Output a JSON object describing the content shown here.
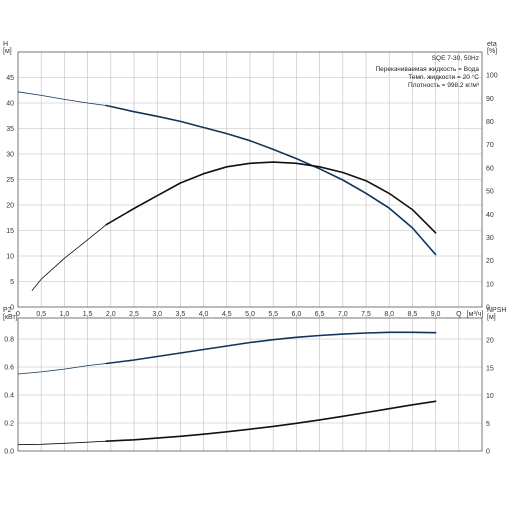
{
  "chart_data": [
    {
      "type": "line",
      "title": "SQE 7-30, 50Hz",
      "notes": [
        "Перекачиваемая жидкость = Вода",
        "Темп. жидкости = 20 °C",
        "Плотность = 998.2 кг/м³"
      ],
      "xlabel": "Q",
      "xunit": "[м³/ч]",
      "xlim": [
        0,
        10
      ],
      "xticks": [
        "0",
        "0,5",
        "1,0",
        "1,5",
        "2,0",
        "2,5",
        "3,0",
        "3,5",
        "4,0",
        "4,5",
        "5,0",
        "5,5",
        "6,0",
        "6,5",
        "7,0",
        "7,5",
        "8,0",
        "8,5",
        "9,0"
      ],
      "ylabel": "H",
      "yunit": "[м]",
      "ylim": [
        0,
        50
      ],
      "yticks": [
        "0",
        "5",
        "10",
        "15",
        "20",
        "25",
        "30",
        "35",
        "40",
        "45"
      ],
      "y2label": "eta",
      "y2unit": "[%]",
      "y2lim": [
        0,
        110
      ],
      "y2ticks": [
        "0",
        "10",
        "20",
        "30",
        "40",
        "50",
        "60",
        "70",
        "80",
        "90",
        "100"
      ],
      "grid": true,
      "series": [
        {
          "axis": "left",
          "color": "#10355a",
          "x": [
            0,
            0.5,
            1.0,
            1.5,
            1.9,
            2.5,
            3.0,
            3.5,
            4.0,
            4.5,
            5.0,
            5.5,
            6.0,
            6.5,
            7.0,
            7.5,
            8.0,
            8.5,
            9.0
          ],
          "y": [
            42.2,
            41.5,
            40.7,
            40.0,
            39.5,
            38.3,
            37.4,
            36.4,
            35.2,
            34.0,
            32.6,
            30.9,
            29.1,
            27.1,
            24.9,
            22.3,
            19.4,
            15.5,
            10.3
          ]
        },
        {
          "axis": "right",
          "color": "#111111",
          "x": [
            0.3,
            0.5,
            1.0,
            1.5,
            1.9,
            2.5,
            3.0,
            3.5,
            4.0,
            4.5,
            5.0,
            5.5,
            6.0,
            6.5,
            7.0,
            7.5,
            8.0,
            8.5,
            9.0
          ],
          "y": [
            7,
            12,
            21,
            29,
            35.5,
            42.5,
            48,
            53.5,
            57.5,
            60.5,
            62,
            62.5,
            62,
            60.5,
            58,
            54.5,
            49,
            42,
            32
          ]
        }
      ]
    },
    {
      "type": "line",
      "xlim": [
        0,
        10
      ],
      "ylabel": "P2",
      "yunit": "[кВт]",
      "ylim": [
        0,
        0.95
      ],
      "yticks": [
        "0.0",
        "0.2",
        "0.4",
        "0.6",
        "0.8"
      ],
      "y2label": "NPSH",
      "y2unit": "[м]",
      "y2lim": [
        0,
        24
      ],
      "y2ticks": [
        "0",
        "5",
        "10",
        "15",
        "20"
      ],
      "grid": true,
      "series": [
        {
          "axis": "left",
          "color": "#10355a",
          "x": [
            0,
            0.5,
            1.0,
            1.5,
            1.9,
            2.5,
            3.0,
            3.5,
            4.0,
            4.5,
            5.0,
            5.5,
            6.0,
            6.5,
            7.0,
            7.5,
            8.0,
            8.5,
            9.0
          ],
          "y": [
            0.55,
            0.565,
            0.585,
            0.61,
            0.625,
            0.65,
            0.675,
            0.7,
            0.725,
            0.75,
            0.775,
            0.795,
            0.812,
            0.825,
            0.835,
            0.843,
            0.848,
            0.848,
            0.845
          ]
        },
        {
          "axis": "left",
          "color": "#111111",
          "x": [
            0,
            0.5,
            1.0,
            1.5,
            1.9,
            2.5,
            3.0,
            3.5,
            4.0,
            4.5,
            5.0,
            5.5,
            6.0,
            6.5,
            7.0,
            7.5,
            8.0,
            8.5,
            9.0
          ],
          "y": [
            0.045,
            0.048,
            0.055,
            0.063,
            0.07,
            0.08,
            0.092,
            0.105,
            0.12,
            0.137,
            0.156,
            0.176,
            0.198,
            0.222,
            0.248,
            0.275,
            0.302,
            0.33,
            0.355
          ]
        }
      ]
    }
  ]
}
